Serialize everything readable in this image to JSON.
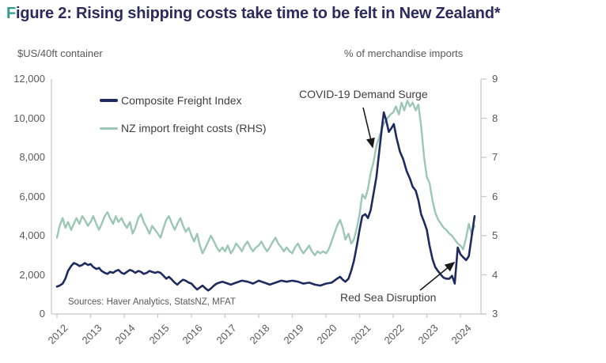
{
  "title": {
    "accent_letter": "F",
    "rest": "igure 2: Rising shipping costs take time to be felt in New Zealand*"
  },
  "axes": {
    "left_label": "$US/40ft container",
    "right_label": "% of merchandise imports",
    "left_ticks": [
      "12,000",
      "10,000",
      "8,000",
      "6,000",
      "4,000",
      "2,000",
      "0"
    ],
    "right_ticks": [
      "9",
      "8",
      "7",
      "6",
      "5",
      "4",
      "3"
    ],
    "x_ticks": [
      "2012",
      "2013",
      "2014",
      "2015",
      "2016",
      "2017",
      "2018",
      "2019",
      "2020",
      "2021",
      "2022",
      "2023",
      "2024"
    ]
  },
  "source_note": "Sources: Haver Analytics, StatsNZ, MFAT",
  "colors": {
    "title_text": "#2d2a5e",
    "title_accent": "#2f9c8d",
    "navy_line": "#1f2a5e",
    "green_line": "#9cc7b7",
    "axis_text": "#595959",
    "label_text": "#404040",
    "axis_line": "#c8c8c8",
    "arrow": "#1a1a1a"
  },
  "chart_data": {
    "type": "line",
    "title": "Figure 2: Rising shipping costs take time to be felt in New Zealand*",
    "x_axis": {
      "ticks": [
        2012,
        2013,
        2014,
        2015,
        2016,
        2017,
        2018,
        2019,
        2020,
        2021,
        2022,
        2023,
        2024
      ],
      "range": [
        2012,
        2024.5
      ]
    },
    "left_y_axis": {
      "label": "$US/40ft container",
      "range": [
        0,
        12000
      ],
      "tick_step": 2000,
      "grid": false
    },
    "right_y_axis": {
      "label": "% of merchandise imports",
      "range": [
        3,
        9
      ],
      "tick_step": 1
    },
    "legend_position": "top-left-inside",
    "series": [
      {
        "name": "NZ import freight costs (RHS)",
        "axis": "right",
        "color": "#9cc7b7",
        "points": [
          [
            2012.0,
            4.95
          ],
          [
            2012.08,
            5.25
          ],
          [
            2012.17,
            5.45
          ],
          [
            2012.25,
            5.2
          ],
          [
            2012.33,
            5.35
          ],
          [
            2012.42,
            5.15
          ],
          [
            2012.5,
            5.3
          ],
          [
            2012.58,
            5.45
          ],
          [
            2012.67,
            5.3
          ],
          [
            2012.75,
            5.5
          ],
          [
            2012.83,
            5.4
          ],
          [
            2012.92,
            5.25
          ],
          [
            2013.0,
            5.35
          ],
          [
            2013.08,
            5.5
          ],
          [
            2013.17,
            5.3
          ],
          [
            2013.25,
            5.15
          ],
          [
            2013.33,
            5.3
          ],
          [
            2013.42,
            5.5
          ],
          [
            2013.5,
            5.6
          ],
          [
            2013.58,
            5.45
          ],
          [
            2013.67,
            5.3
          ],
          [
            2013.75,
            5.5
          ],
          [
            2013.83,
            5.35
          ],
          [
            2013.92,
            5.45
          ],
          [
            2014.0,
            5.3
          ],
          [
            2014.08,
            5.2
          ],
          [
            2014.17,
            5.35
          ],
          [
            2014.25,
            5.05
          ],
          [
            2014.33,
            5.2
          ],
          [
            2014.42,
            5.45
          ],
          [
            2014.5,
            5.55
          ],
          [
            2014.58,
            5.35
          ],
          [
            2014.67,
            5.2
          ],
          [
            2014.75,
            5.05
          ],
          [
            2014.83,
            5.25
          ],
          [
            2014.92,
            5.15
          ],
          [
            2015.0,
            5.05
          ],
          [
            2015.08,
            4.95
          ],
          [
            2015.17,
            5.2
          ],
          [
            2015.25,
            5.4
          ],
          [
            2015.33,
            5.5
          ],
          [
            2015.42,
            5.3
          ],
          [
            2015.5,
            5.15
          ],
          [
            2015.58,
            5.3
          ],
          [
            2015.67,
            5.45
          ],
          [
            2015.75,
            5.25
          ],
          [
            2015.83,
            5.1
          ],
          [
            2015.92,
            5.2
          ],
          [
            2016.0,
            5.0
          ],
          [
            2016.08,
            4.85
          ],
          [
            2016.17,
            5.05
          ],
          [
            2016.25,
            4.75
          ],
          [
            2016.33,
            4.55
          ],
          [
            2016.42,
            4.7
          ],
          [
            2016.5,
            4.85
          ],
          [
            2016.58,
            5.0
          ],
          [
            2016.67,
            4.85
          ],
          [
            2016.75,
            4.7
          ],
          [
            2016.83,
            4.6
          ],
          [
            2016.92,
            4.7
          ],
          [
            2017.0,
            4.6
          ],
          [
            2017.08,
            4.75
          ],
          [
            2017.17,
            4.55
          ],
          [
            2017.25,
            4.65
          ],
          [
            2017.33,
            4.8
          ],
          [
            2017.42,
            4.7
          ],
          [
            2017.5,
            4.6
          ],
          [
            2017.58,
            4.75
          ],
          [
            2017.67,
            4.85
          ],
          [
            2017.75,
            4.7
          ],
          [
            2017.83,
            4.6
          ],
          [
            2017.92,
            4.7
          ],
          [
            2018.0,
            4.75
          ],
          [
            2018.08,
            4.85
          ],
          [
            2018.17,
            4.7
          ],
          [
            2018.25,
            4.6
          ],
          [
            2018.33,
            4.7
          ],
          [
            2018.42,
            4.85
          ],
          [
            2018.5,
            4.95
          ],
          [
            2018.58,
            4.8
          ],
          [
            2018.67,
            4.7
          ],
          [
            2018.75,
            4.6
          ],
          [
            2018.83,
            4.7
          ],
          [
            2018.92,
            4.6
          ],
          [
            2019.0,
            4.55
          ],
          [
            2019.08,
            4.7
          ],
          [
            2019.17,
            4.8
          ],
          [
            2019.25,
            4.65
          ],
          [
            2019.33,
            4.55
          ],
          [
            2019.42,
            4.65
          ],
          [
            2019.5,
            4.75
          ],
          [
            2019.58,
            4.6
          ],
          [
            2019.67,
            4.5
          ],
          [
            2019.75,
            4.6
          ],
          [
            2019.83,
            4.55
          ],
          [
            2019.92,
            4.6
          ],
          [
            2020.0,
            4.55
          ],
          [
            2020.08,
            4.65
          ],
          [
            2020.17,
            4.85
          ],
          [
            2020.25,
            5.05
          ],
          [
            2020.33,
            5.25
          ],
          [
            2020.42,
            5.4
          ],
          [
            2020.5,
            5.2
          ],
          [
            2020.58,
            4.9
          ],
          [
            2020.67,
            5.05
          ],
          [
            2020.75,
            4.8
          ],
          [
            2020.83,
            4.9
          ],
          [
            2020.92,
            5.2
          ],
          [
            2021.0,
            5.55
          ],
          [
            2021.08,
            6.05
          ],
          [
            2021.17,
            5.95
          ],
          [
            2021.25,
            6.2
          ],
          [
            2021.33,
            6.6
          ],
          [
            2021.42,
            6.9
          ],
          [
            2021.5,
            7.3
          ],
          [
            2021.58,
            7.5
          ],
          [
            2021.67,
            7.75
          ],
          [
            2021.75,
            7.9
          ],
          [
            2021.83,
            8.0
          ],
          [
            2021.92,
            8.1
          ],
          [
            2022.0,
            8.15
          ],
          [
            2022.08,
            8.3
          ],
          [
            2022.17,
            8.1
          ],
          [
            2022.25,
            8.4
          ],
          [
            2022.33,
            8.2
          ],
          [
            2022.42,
            8.45
          ],
          [
            2022.5,
            8.3
          ],
          [
            2022.58,
            8.4
          ],
          [
            2022.67,
            8.2
          ],
          [
            2022.75,
            8.35
          ],
          [
            2022.83,
            7.8
          ],
          [
            2022.92,
            7.0
          ],
          [
            2023.0,
            6.5
          ],
          [
            2023.08,
            6.35
          ],
          [
            2023.17,
            5.9
          ],
          [
            2023.25,
            5.6
          ],
          [
            2023.33,
            5.42
          ],
          [
            2023.42,
            5.3
          ],
          [
            2023.5,
            5.2
          ],
          [
            2023.58,
            5.15
          ],
          [
            2023.67,
            5.05
          ],
          [
            2023.75,
            5.0
          ],
          [
            2023.83,
            4.9
          ],
          [
            2023.92,
            4.8
          ],
          [
            2024.0,
            4.75
          ],
          [
            2024.08,
            4.65
          ],
          [
            2024.17,
            4.95
          ],
          [
            2024.25,
            5.3
          ],
          [
            2024.33,
            5.05
          ],
          [
            2024.42,
            5.25
          ]
        ]
      },
      {
        "name": "Composite Freight Index",
        "axis": "left",
        "color": "#1f2a5e",
        "points": [
          [
            2012.0,
            1400
          ],
          [
            2012.08,
            1450
          ],
          [
            2012.17,
            1550
          ],
          [
            2012.25,
            1800
          ],
          [
            2012.33,
            2200
          ],
          [
            2012.42,
            2450
          ],
          [
            2012.5,
            2600
          ],
          [
            2012.58,
            2550
          ],
          [
            2012.67,
            2450
          ],
          [
            2012.75,
            2500
          ],
          [
            2012.83,
            2600
          ],
          [
            2012.92,
            2500
          ],
          [
            2013.0,
            2550
          ],
          [
            2013.08,
            2400
          ],
          [
            2013.17,
            2300
          ],
          [
            2013.25,
            2350
          ],
          [
            2013.33,
            2200
          ],
          [
            2013.42,
            2100
          ],
          [
            2013.5,
            2050
          ],
          [
            2013.58,
            2150
          ],
          [
            2013.67,
            2100
          ],
          [
            2013.75,
            2200
          ],
          [
            2013.83,
            2250
          ],
          [
            2013.92,
            2100
          ],
          [
            2014.0,
            2050
          ],
          [
            2014.08,
            2150
          ],
          [
            2014.17,
            2250
          ],
          [
            2014.25,
            2200
          ],
          [
            2014.33,
            2100
          ],
          [
            2014.42,
            2200
          ],
          [
            2014.5,
            2150
          ],
          [
            2014.58,
            2050
          ],
          [
            2014.67,
            2100
          ],
          [
            2014.75,
            2200
          ],
          [
            2014.83,
            2150
          ],
          [
            2014.92,
            2100
          ],
          [
            2015.0,
            2150
          ],
          [
            2015.08,
            2100
          ],
          [
            2015.17,
            1950
          ],
          [
            2015.25,
            1800
          ],
          [
            2015.33,
            1900
          ],
          [
            2015.42,
            1750
          ],
          [
            2015.5,
            1600
          ],
          [
            2015.58,
            1500
          ],
          [
            2015.67,
            1650
          ],
          [
            2015.75,
            1750
          ],
          [
            2015.83,
            1700
          ],
          [
            2015.92,
            1600
          ],
          [
            2016.0,
            1550
          ],
          [
            2016.08,
            1400
          ],
          [
            2016.17,
            1250
          ],
          [
            2016.25,
            1350
          ],
          [
            2016.33,
            1450
          ],
          [
            2016.42,
            1300
          ],
          [
            2016.5,
            1200
          ],
          [
            2016.58,
            1300
          ],
          [
            2016.67,
            1450
          ],
          [
            2016.75,
            1550
          ],
          [
            2016.83,
            1600
          ],
          [
            2016.92,
            1650
          ],
          [
            2017.0,
            1600
          ],
          [
            2017.17,
            1500
          ],
          [
            2017.33,
            1600
          ],
          [
            2017.5,
            1700
          ],
          [
            2017.67,
            1650
          ],
          [
            2017.83,
            1550
          ],
          [
            2018.0,
            1700
          ],
          [
            2018.17,
            1600
          ],
          [
            2018.33,
            1500
          ],
          [
            2018.5,
            1600
          ],
          [
            2018.67,
            1700
          ],
          [
            2018.83,
            1650
          ],
          [
            2019.0,
            1700
          ],
          [
            2019.17,
            1650
          ],
          [
            2019.33,
            1550
          ],
          [
            2019.5,
            1600
          ],
          [
            2019.67,
            1500
          ],
          [
            2019.83,
            1450
          ],
          [
            2020.0,
            1550
          ],
          [
            2020.17,
            1600
          ],
          [
            2020.33,
            1800
          ],
          [
            2020.42,
            1900
          ],
          [
            2020.5,
            1750
          ],
          [
            2020.58,
            1650
          ],
          [
            2020.67,
            1800
          ],
          [
            2020.75,
            2200
          ],
          [
            2020.83,
            2700
          ],
          [
            2020.92,
            3500
          ],
          [
            2021.0,
            4300
          ],
          [
            2021.08,
            5000
          ],
          [
            2021.17,
            5100
          ],
          [
            2021.25,
            4900
          ],
          [
            2021.33,
            5300
          ],
          [
            2021.42,
            6200
          ],
          [
            2021.5,
            7000
          ],
          [
            2021.58,
            8200
          ],
          [
            2021.67,
            9600
          ],
          [
            2021.72,
            10300
          ],
          [
            2021.79,
            9900
          ],
          [
            2021.87,
            9300
          ],
          [
            2021.95,
            9500
          ],
          [
            2022.02,
            9700
          ],
          [
            2022.1,
            9000
          ],
          [
            2022.2,
            8300
          ],
          [
            2022.3,
            7900
          ],
          [
            2022.4,
            7300
          ],
          [
            2022.5,
            6900
          ],
          [
            2022.58,
            6500
          ],
          [
            2022.67,
            6300
          ],
          [
            2022.75,
            5800
          ],
          [
            2022.83,
            5100
          ],
          [
            2022.92,
            4700
          ],
          [
            2023.0,
            4300
          ],
          [
            2023.08,
            3500
          ],
          [
            2023.17,
            2800
          ],
          [
            2023.25,
            2400
          ],
          [
            2023.33,
            2200
          ],
          [
            2023.42,
            2000
          ],
          [
            2023.5,
            1850
          ],
          [
            2023.58,
            1800
          ],
          [
            2023.67,
            1800
          ],
          [
            2023.75,
            1950
          ],
          [
            2023.83,
            1550
          ],
          [
            2023.92,
            3400
          ],
          [
            2024.0,
            3050
          ],
          [
            2024.08,
            2900
          ],
          [
            2024.17,
            2750
          ],
          [
            2024.25,
            2950
          ],
          [
            2024.33,
            3900
          ],
          [
            2024.42,
            5000
          ]
        ]
      }
    ],
    "annotations": [
      {
        "text": "COVID-19 Demand Surge",
        "arrow_points_to": "steep 2021 rise of Composite Freight Index"
      },
      {
        "text": "Red Sea Disruption",
        "arrow_points_to": "early 2024 jump of Composite Freight Index"
      }
    ]
  },
  "legend": {
    "row1": "Composite Freight Index",
    "row2": "NZ import freight costs (RHS)"
  }
}
